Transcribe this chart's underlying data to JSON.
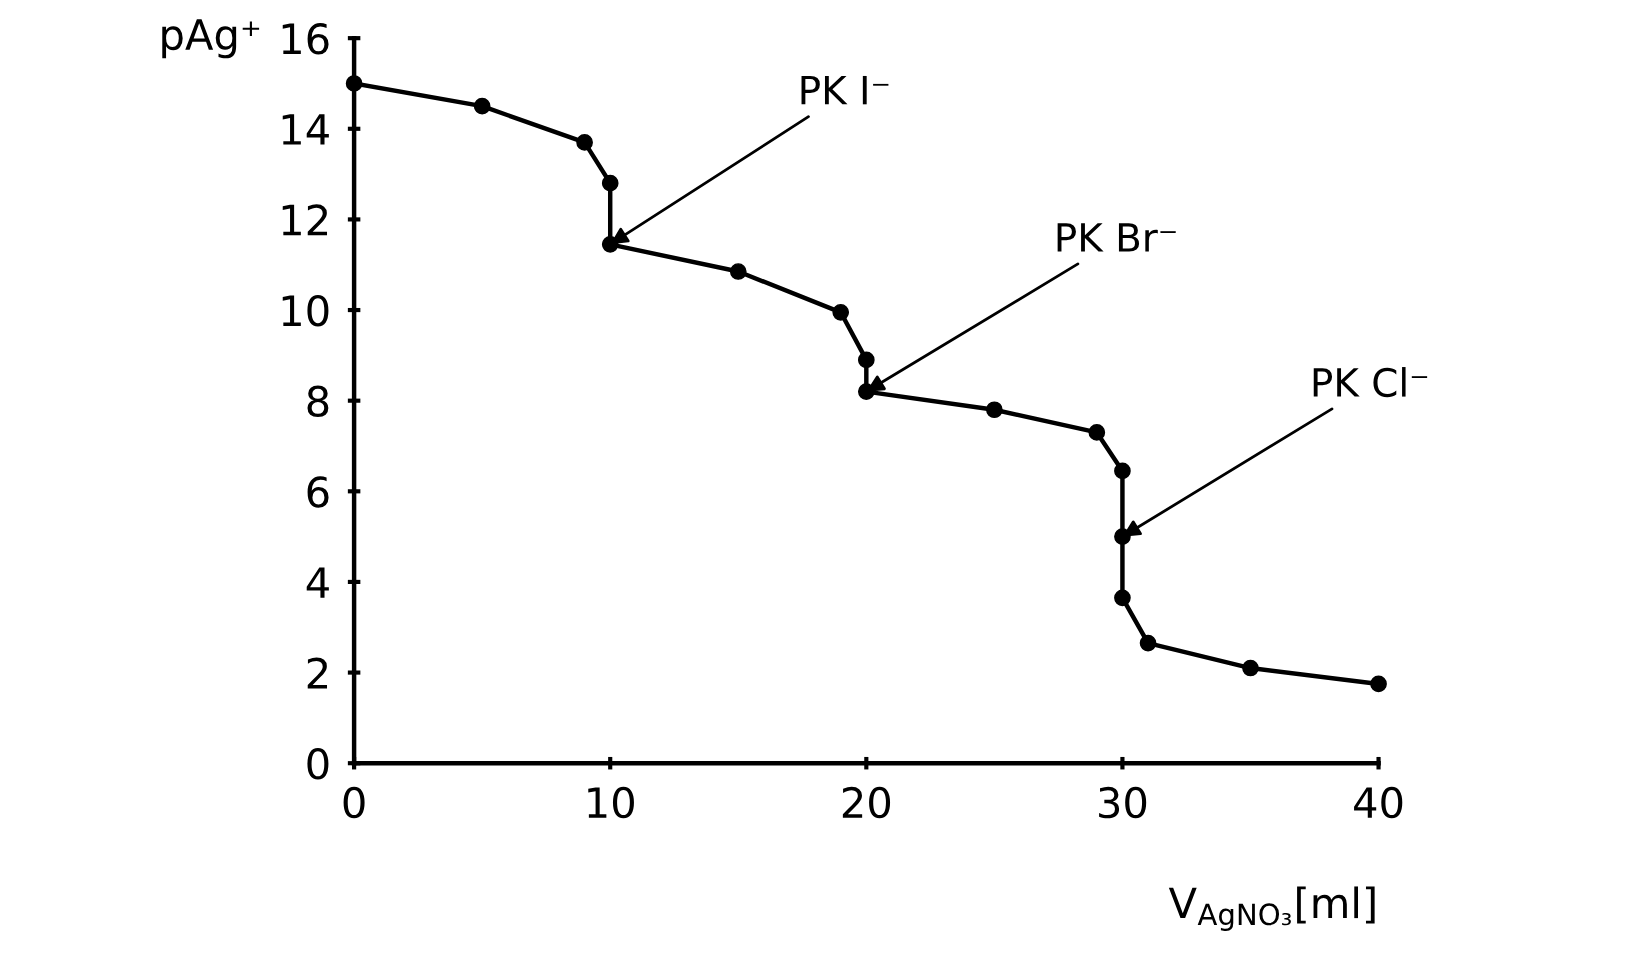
{
  "chart_data": {
    "type": "line",
    "xlabel": "V$_{AgNO₃}$[ml]",
    "ylabel": "pAg⁺",
    "x": [
      0,
      5,
      9,
      10,
      10,
      15,
      19,
      20,
      20,
      25,
      29,
      30,
      30,
      30,
      31,
      35,
      40
    ],
    "series": [
      {
        "color": "#000000",
        "values": [
          15.0,
          14.5,
          13.7,
          12.8,
          11.45,
          10.85,
          9.95,
          8.9,
          8.2,
          7.8,
          7.3,
          6.45,
          5.0,
          3.65,
          2.65,
          2.1,
          1.75
        ]
      }
    ],
    "xlim": [
      0,
      40
    ],
    "xticks": [
      0,
      10,
      20,
      30,
      40
    ],
    "ylim": [
      0,
      16
    ],
    "yticks": [
      0,
      2,
      4,
      6,
      8,
      10,
      12,
      14,
      16
    ],
    "marker": "circle",
    "line_style": "solid",
    "grid": false,
    "legend": false,
    "annotations": [
      {
        "text": "PK I⁻",
        "x": 10,
        "y": 11.45
      },
      {
        "text": "PK Br⁻",
        "x": 20,
        "y": 8.2
      },
      {
        "text": "PK Cl⁻",
        "x": 30,
        "y": 5.0
      }
    ]
  }
}
